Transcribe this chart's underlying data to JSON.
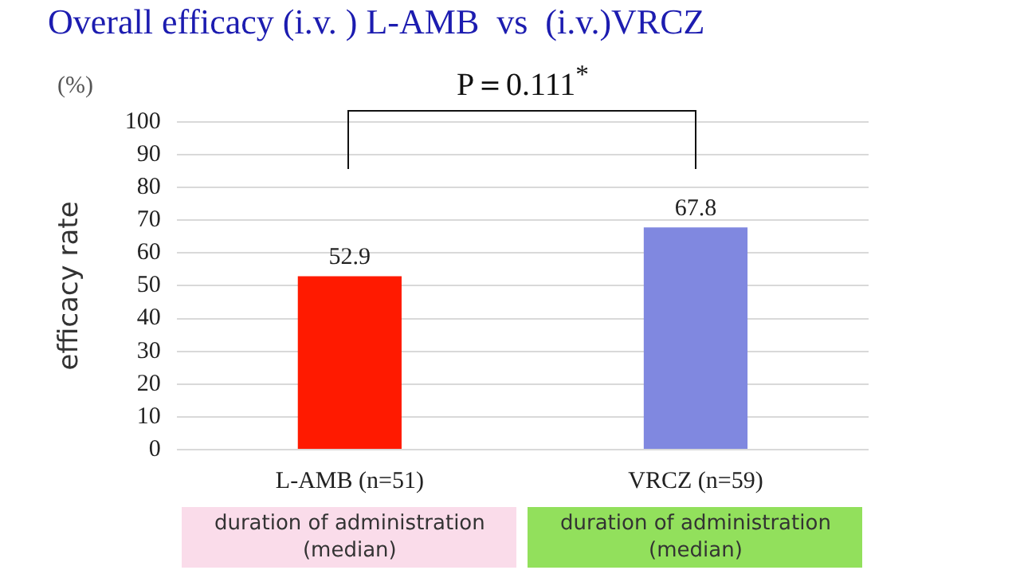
{
  "chart_data": {
    "type": "bar",
    "title": "Overall efficacy (i.v. ) L-AMB  vs  (i.v.)VRCZ",
    "ylabel": "efficacy rate",
    "categories": [
      "L-AMB (n=51)",
      "VRCZ (n=59)"
    ],
    "values": [
      52.9,
      67.8
    ],
    "colors": [
      "#ff1a00",
      "#8088e0"
    ],
    "ylim": [
      0,
      100
    ],
    "yticks": [
      0,
      10,
      20,
      30,
      40,
      50,
      60,
      70,
      80,
      90,
      100
    ],
    "grid": "y",
    "data_labels": true,
    "legend": false,
    "annotations": [
      "(%)",
      "P＝0.111$^{*}$",
      "duration of administration\n(median)",
      "duration of administration\n(median)"
    ]
  }
}
